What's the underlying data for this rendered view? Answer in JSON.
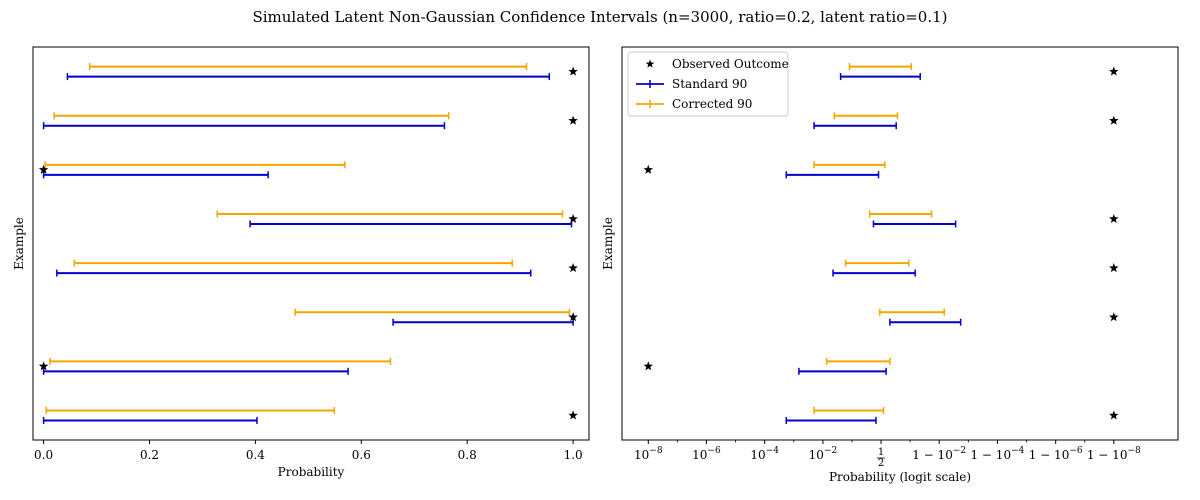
{
  "figure": {
    "title": "Simulated Latent Non-Gaussian Confidence Intervals (n=3000, ratio=0.2, latent ratio=0.1)"
  },
  "colors": {
    "standard": "#0000cc",
    "corrected": "#f5a500",
    "observed": "#000000"
  },
  "chart_data": [
    {
      "type": "interval",
      "panel": "left",
      "xlabel": "Probability",
      "ylabel": "Example",
      "xlim": [
        -0.02,
        1.03
      ],
      "scale": "linear",
      "xticks": [
        {
          "value": 0.0,
          "label": "0.0"
        },
        {
          "value": 0.2,
          "label": "0.2"
        },
        {
          "value": 0.4,
          "label": "0.4"
        },
        {
          "value": 0.6,
          "label": "0.6"
        },
        {
          "value": 0.8,
          "label": "0.8"
        },
        {
          "value": 1.0,
          "label": "1.0"
        }
      ],
      "series": [
        {
          "name": "Standard 90",
          "intervals": [
            [
              0.0,
              0.403
            ],
            [
              0.0,
              0.575
            ],
            [
              0.66,
              1.0
            ],
            [
              0.025,
              0.92
            ],
            [
              0.39,
              0.997
            ],
            [
              0.0,
              0.424
            ],
            [
              0.0,
              0.757
            ],
            [
              0.045,
              0.955
            ]
          ]
        },
        {
          "name": "Corrected 90",
          "intervals": [
            [
              0.005,
              0.549
            ],
            [
              0.012,
              0.655
            ],
            [
              0.475,
              0.993
            ],
            [
              0.058,
              0.885
            ],
            [
              0.328,
              0.98
            ],
            [
              0.003,
              0.569
            ],
            [
              0.02,
              0.765
            ],
            [
              0.087,
              0.912
            ]
          ]
        },
        {
          "name": "Observed Outcome",
          "points": [
            1,
            0,
            1,
            1,
            1,
            0,
            1,
            1
          ]
        }
      ]
    },
    {
      "type": "interval",
      "panel": "right",
      "xlabel": "Probability (logit scale)",
      "ylabel": "Example",
      "scale": "logit",
      "xlim_logit": [
        -20.5,
        23.5
      ],
      "xticks": [
        {
          "logit": -18.42,
          "label": "10^{-8}"
        },
        {
          "logit": -13.82,
          "label": "10^{-6}"
        },
        {
          "logit": -9.21,
          "label": "10^{-4}"
        },
        {
          "logit": -4.6,
          "label": "10^{-2}"
        },
        {
          "logit": 0.0,
          "label": "1/2"
        },
        {
          "logit": 4.6,
          "label": "1 - 10^{-2}"
        },
        {
          "logit": 9.21,
          "label": "1 - 10^{-4}"
        },
        {
          "logit": 13.82,
          "label": "1 - 10^{-6}"
        },
        {
          "logit": 18.42,
          "label": "1 - 10^{-8}"
        }
      ],
      "series": [
        {
          "name": "Standard 90",
          "intervals_logit": [
            [
              -7.5,
              -0.4
            ],
            [
              -6.5,
              0.4
            ],
            [
              0.7,
              6.3
            ],
            [
              -3.8,
              2.7
            ],
            [
              -0.6,
              5.9
            ],
            [
              -7.5,
              -0.2
            ],
            [
              -5.3,
              1.2
            ],
            [
              -3.2,
              3.1
            ]
          ]
        },
        {
          "name": "Corrected 90",
          "intervals_logit": [
            [
              -5.3,
              0.2
            ],
            [
              -4.3,
              0.7
            ],
            [
              -0.1,
              5.0
            ],
            [
              -2.8,
              2.2
            ],
            [
              -0.9,
              4.0
            ],
            [
              -5.3,
              0.3
            ],
            [
              -3.7,
              1.3
            ],
            [
              -2.5,
              2.4
            ]
          ]
        },
        {
          "name": "Observed Outcome",
          "points_logit": [
            18.42,
            -18.42,
            18.42,
            18.42,
            18.42,
            -18.42,
            18.42,
            18.42
          ]
        }
      ],
      "legend": {
        "placement": "top-left",
        "entries": [
          "Observed Outcome",
          "Standard 90",
          "Corrected 90"
        ]
      }
    }
  ]
}
